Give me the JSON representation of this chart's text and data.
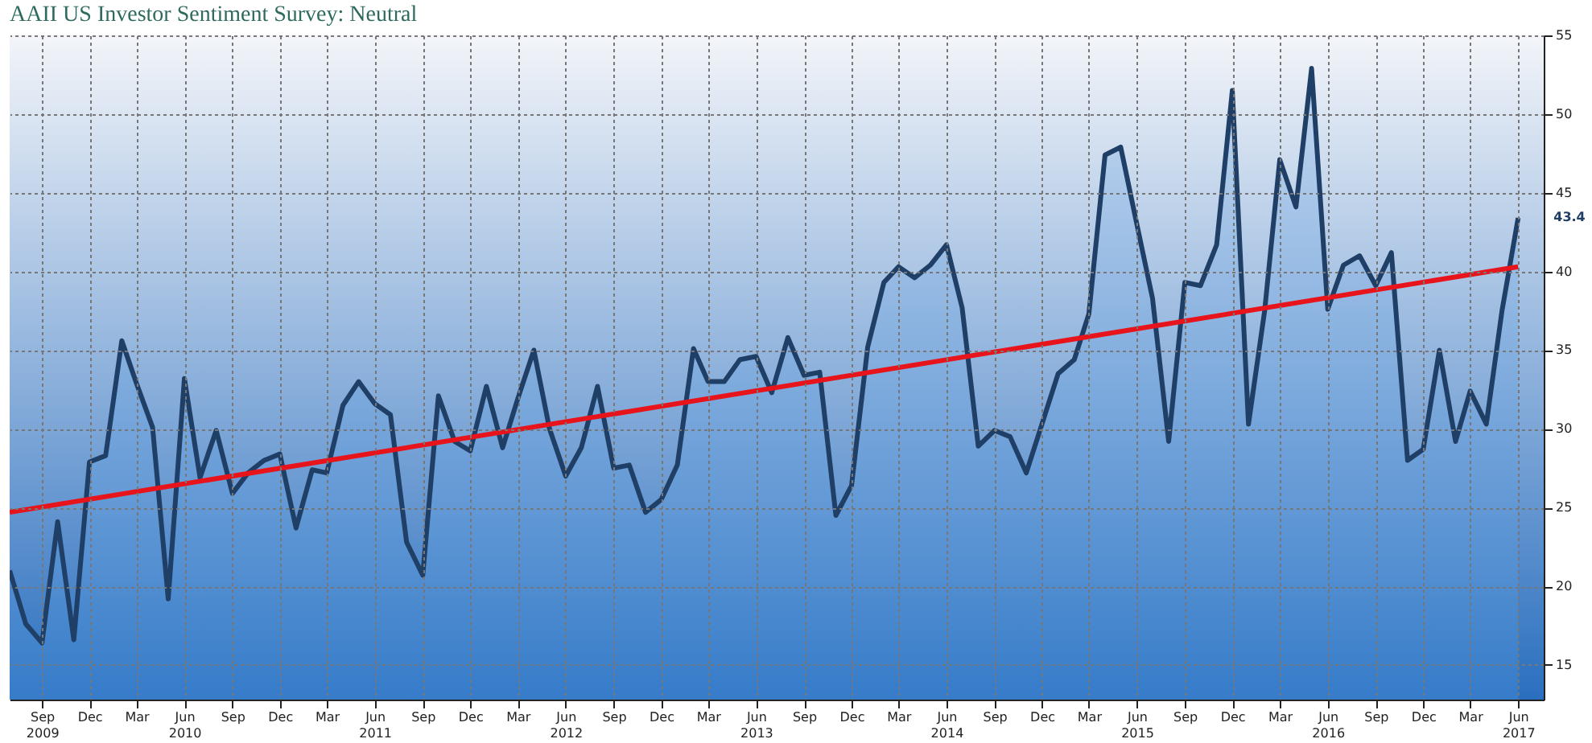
{
  "chart_data": {
    "type": "area",
    "title": "AAII US Investor Sentiment Survey: Neutral",
    "x": [
      "2009-07",
      "2009-08",
      "2009-09",
      "2009-10",
      "2009-11",
      "2009-12",
      "2010-01",
      "2010-02",
      "2010-03",
      "2010-04",
      "2010-05",
      "2010-06",
      "2010-07",
      "2010-08",
      "2010-09",
      "2010-10",
      "2010-11",
      "2010-12",
      "2011-01",
      "2011-02",
      "2011-03",
      "2011-04",
      "2011-05",
      "2011-06",
      "2011-07",
      "2011-08",
      "2011-09",
      "2011-10",
      "2011-11",
      "2011-12",
      "2012-01",
      "2012-02",
      "2012-03",
      "2012-04",
      "2012-05",
      "2012-06",
      "2012-07",
      "2012-08",
      "2012-09",
      "2012-10",
      "2012-11",
      "2012-12",
      "2013-01",
      "2013-02",
      "2013-03",
      "2013-04",
      "2013-05",
      "2013-06",
      "2013-07",
      "2013-08",
      "2013-09",
      "2013-10",
      "2013-11",
      "2013-12",
      "2014-01",
      "2014-02",
      "2014-03",
      "2014-04",
      "2014-05",
      "2014-06",
      "2014-07",
      "2014-08",
      "2014-09",
      "2014-10",
      "2014-11",
      "2014-12",
      "2015-01",
      "2015-02",
      "2015-03",
      "2015-04",
      "2015-05",
      "2015-06",
      "2015-07",
      "2015-08",
      "2015-09",
      "2015-10",
      "2015-11",
      "2015-12",
      "2016-01",
      "2016-02",
      "2016-03",
      "2016-04",
      "2016-05",
      "2016-06",
      "2016-07",
      "2016-08",
      "2016-09",
      "2016-10",
      "2016-11",
      "2016-12",
      "2017-01",
      "2017-02",
      "2017-03",
      "2017-04",
      "2017-05",
      "2017-06"
    ],
    "series": [
      {
        "type": "area",
        "color": "#1f3f66",
        "values": [
          21.0,
          17.6,
          16.4,
          24.1,
          16.6,
          27.9,
          28.3,
          35.6,
          32.9,
          30.1,
          19.2,
          33.2,
          26.9,
          29.9,
          25.9,
          27.2,
          28.0,
          28.4,
          23.7,
          27.4,
          27.2,
          31.5,
          33.0,
          31.6,
          30.9,
          22.8,
          20.7,
          32.1,
          29.2,
          28.6,
          32.7,
          28.8,
          31.9,
          35.0,
          30.0,
          27.0,
          28.8,
          32.7,
          27.5,
          27.7,
          24.7,
          25.5,
          27.7,
          35.1,
          33.0,
          33.0,
          34.4,
          34.6,
          32.3,
          35.8,
          33.4,
          33.6,
          24.5,
          26.4,
          35.2,
          39.3,
          40.3,
          39.6,
          40.4,
          41.7,
          37.7,
          28.9,
          29.9,
          29.5,
          27.2,
          30.3,
          33.5,
          34.4,
          37.3,
          47.4,
          47.9,
          43.0,
          38.3,
          29.2,
          39.3,
          39.1,
          41.7,
          51.5,
          30.3,
          37.5,
          47.1,
          44.1,
          52.9,
          37.6,
          40.4,
          41.0,
          39.1,
          41.2,
          28.0,
          28.7,
          35.0,
          29.2,
          32.4,
          30.3,
          37.5,
          43.4
        ]
      },
      {
        "type": "line",
        "color": "#e8141b",
        "x": [
          "2009-07",
          "2017-06"
        ],
        "values": [
          24.7,
          40.3
        ]
      }
    ],
    "annotations": [
      {
        "text": "43.4",
        "x": "2017-06",
        "y": 43.4
      }
    ],
    "xlim": [
      "2009-07-01",
      "2017-07-20"
    ],
    "xticks": [
      {
        "value": "2009-09",
        "label": "Sep 2009"
      },
      {
        "value": "2009-12",
        "label": "Dec"
      },
      {
        "value": "2010-03",
        "label": "Mar"
      },
      {
        "value": "2010-06",
        "label": "Jun 2010"
      },
      {
        "value": "2010-09",
        "label": "Sep"
      },
      {
        "value": "2010-12",
        "label": "Dec"
      },
      {
        "value": "2011-03",
        "label": "Mar"
      },
      {
        "value": "2011-06",
        "label": "Jun 2011"
      },
      {
        "value": "2011-09",
        "label": "Sep"
      },
      {
        "value": "2011-12",
        "label": "Dec"
      },
      {
        "value": "2012-03",
        "label": "Mar"
      },
      {
        "value": "2012-06",
        "label": "Jun 2012"
      },
      {
        "value": "2012-09",
        "label": "Sep"
      },
      {
        "value": "2012-12",
        "label": "Dec"
      },
      {
        "value": "2013-03",
        "label": "Mar"
      },
      {
        "value": "2013-06",
        "label": "Jun 2013"
      },
      {
        "value": "2013-09",
        "label": "Sep"
      },
      {
        "value": "2013-12",
        "label": "Dec"
      },
      {
        "value": "2014-03",
        "label": "Mar"
      },
      {
        "value": "2014-06",
        "label": "Jun 2014"
      },
      {
        "value": "2014-09",
        "label": "Sep"
      },
      {
        "value": "2014-12",
        "label": "Dec"
      },
      {
        "value": "2015-03",
        "label": "Mar"
      },
      {
        "value": "2015-06",
        "label": "Jun 2015"
      },
      {
        "value": "2015-09",
        "label": "Sep"
      },
      {
        "value": "2015-12",
        "label": "Dec"
      },
      {
        "value": "2016-03",
        "label": "Mar"
      },
      {
        "value": "2016-06",
        "label": "Jun 2016"
      },
      {
        "value": "2016-09",
        "label": "Sep"
      },
      {
        "value": "2016-12",
        "label": "Dec"
      },
      {
        "value": "2017-03",
        "label": "Mar"
      },
      {
        "value": "2017-06",
        "label": "Jun 2017"
      }
    ],
    "ylim": [
      12.8,
      55
    ],
    "yticks": [
      15,
      20,
      25,
      30,
      35,
      40,
      45,
      50,
      55
    ],
    "grid": true,
    "legend": false,
    "line_style": "solid",
    "marker": "none"
  }
}
